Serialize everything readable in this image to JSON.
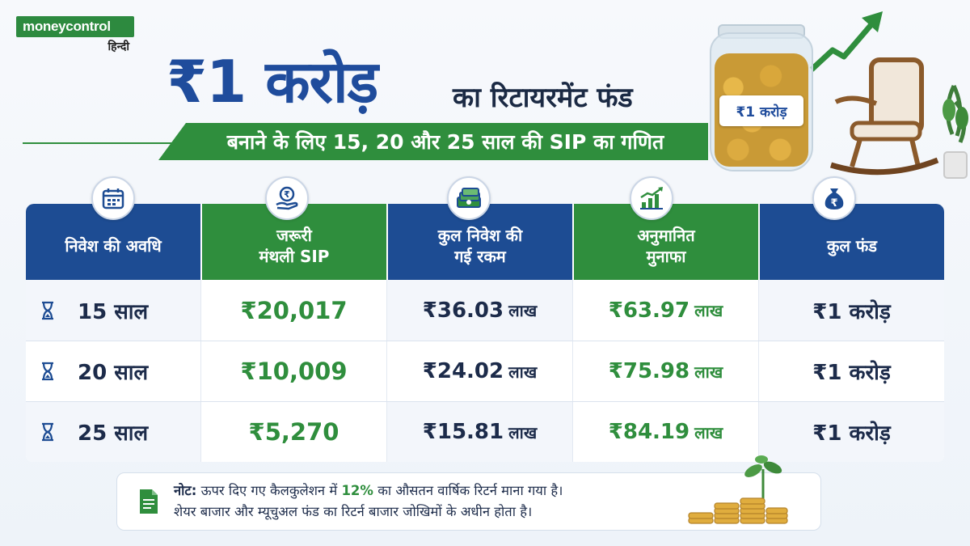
{
  "brand": {
    "name": "moneycontrol",
    "sub": "हिन्दी",
    "accent_green": "#2f8e3d",
    "accent_blue": "#1d4c93"
  },
  "headline": {
    "big": "₹1 करोड़",
    "small": "का रिटायरमेंट फंड",
    "subtitle": "बनाने के लिए 15, 20 और 25 साल की SIP का गणित"
  },
  "jar": {
    "label": "₹1 करोड़"
  },
  "table": {
    "columns": [
      {
        "icon": "calendar-icon",
        "lines": [
          "निवेश की अवधि"
        ]
      },
      {
        "icon": "rupee-hand-icon",
        "lines": [
          "जरूरी",
          "मंथली SIP"
        ]
      },
      {
        "icon": "money-stack-icon",
        "lines": [
          "कुल निवेश की",
          "गई रकम"
        ]
      },
      {
        "icon": "growth-chart-icon",
        "lines": [
          "अनुमानित",
          "मुनाफा"
        ]
      },
      {
        "icon": "money-bag-icon",
        "lines": [
          "कुल फंड"
        ]
      }
    ],
    "rows": [
      {
        "period": "15 साल",
        "sip": "₹20,017",
        "invest": "₹36.03",
        "invest_unit": "लाख",
        "profit": "₹63.97",
        "profit_unit": "लाख",
        "total": "₹1 करोड़"
      },
      {
        "period": "20 साल",
        "sip": "₹10,009",
        "invest": "₹24.02",
        "invest_unit": "लाख",
        "profit": "₹75.98",
        "profit_unit": "लाख",
        "total": "₹1 करोड़"
      },
      {
        "period": "25 साल",
        "sip": "₹5,270",
        "invest": "₹15.81",
        "invest_unit": "लाख",
        "profit": "₹84.19",
        "profit_unit": "लाख",
        "total": "₹1 करोड़"
      }
    ]
  },
  "note": {
    "label": "नोट:",
    "line1_before": "ऊपर दिए गए कैलकुलेशन में",
    "highlight": "12%",
    "line1_after": "का औसतन वार्षिक रिटर्न माना गया है।",
    "line2": "शेयर बाजार और म्यूचुअल फंड का रिटर्न बाजार जोखिमों के अधीन होता है।"
  }
}
